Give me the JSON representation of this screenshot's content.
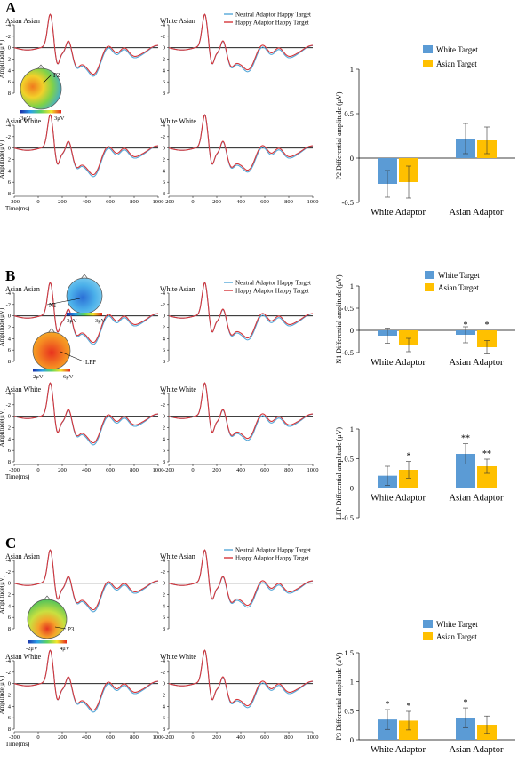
{
  "colors": {
    "neutral": "#56a8d8",
    "happy": "#d6363a",
    "white_target": "#5b9bd5",
    "asian_target": "#ffc000"
  },
  "erp_axes": {
    "xlabel": "Time(ms)",
    "ylabel": "Amplitude(μV)",
    "xticks": [
      "-200",
      "0",
      "200",
      "400",
      "600",
      "800",
      "1000"
    ],
    "yticks_full": [
      "-4",
      "-2",
      "0",
      "2",
      "4",
      "6",
      "8"
    ],
    "yticks_a_top": [
      "-4",
      "-2",
      "0",
      "2",
      "4",
      "6",
      "8"
    ]
  },
  "erp_legend": [
    "Neutral Adaptor Happy Target",
    "Happy Adaptor Happy Target"
  ],
  "bar_legend": [
    "White Target",
    "Asian Target"
  ],
  "bar_categories": [
    "White Adaptor",
    "Asian Adaptor"
  ],
  "panels": [
    {
      "label": "A",
      "erp_titles": [
        "Asian Asian",
        "White Asian",
        "Asian White",
        "White White"
      ],
      "topo": [
        {
          "component": "P2",
          "min": "-3μV",
          "max": "3μV"
        }
      ]
    },
    {
      "label": "B",
      "erp_titles": [
        "Asian Asian",
        "White Asian",
        "Asian White",
        "White White"
      ],
      "topo": [
        {
          "component": "N1",
          "min": "-3μV",
          "max": "3μV"
        },
        {
          "component": "LPP",
          "min": "-2μV",
          "max": "6μV"
        }
      ]
    },
    {
      "label": "C",
      "erp_titles": [
        "Asian Asian",
        "White Asian",
        "Asian White",
        "White White"
      ],
      "topo": [
        {
          "component": "P3",
          "min": "-2μV",
          "max": "4μV"
        }
      ]
    }
  ],
  "chart_data": [
    {
      "type": "bar",
      "id": "p2",
      "ylabel": "P2 Differential amplitude (μV)",
      "categories": [
        "White Adaptor",
        "Asian Adaptor"
      ],
      "ylim": [
        -0.5,
        1
      ],
      "yticks": [
        "1",
        "0.5",
        "0",
        "-0.5"
      ],
      "series": [
        {
          "name": "White Target",
          "values": [
            -0.29,
            0.22
          ],
          "errors": [
            0.15,
            0.17
          ]
        },
        {
          "name": "Asian Target",
          "values": [
            -0.27,
            0.2
          ],
          "errors": [
            0.18,
            0.15
          ]
        }
      ],
      "significance": [
        [
          "",
          ""
        ],
        [
          "",
          ""
        ]
      ]
    },
    {
      "type": "bar",
      "id": "n1",
      "ylabel": "N1 Differential amplitude (μV)",
      "categories": [
        "White Adaptor",
        "Asian Adaptor"
      ],
      "ylim": [
        -0.5,
        1
      ],
      "yticks": [
        "1",
        "0.5",
        "0",
        "-0.5"
      ],
      "series": [
        {
          "name": "White Target",
          "values": [
            -0.12,
            -0.1
          ],
          "errors": [
            0.17,
            0.18
          ]
        },
        {
          "name": "Asian Target",
          "values": [
            -0.33,
            -0.38
          ],
          "errors": [
            0.15,
            0.15
          ]
        }
      ],
      "significance": [
        [
          "",
          "*"
        ],
        [
          "",
          "*"
        ]
      ]
    },
    {
      "type": "bar",
      "id": "lpp",
      "ylabel": "LPP Differential amplitude (μV)",
      "categories": [
        "White Adaptor",
        "Asian Adaptor"
      ],
      "ylim": [
        -0.5,
        1
      ],
      "yticks": [
        "1",
        "0.5",
        "0",
        "-0.5"
      ],
      "series": [
        {
          "name": "White Target",
          "values": [
            0.21,
            0.58
          ],
          "errors": [
            0.16,
            0.17
          ]
        },
        {
          "name": "Asian Target",
          "values": [
            0.31,
            0.37
          ],
          "errors": [
            0.14,
            0.12
          ]
        }
      ],
      "significance": [
        [
          "",
          "**"
        ],
        [
          "*",
          "**"
        ]
      ]
    },
    {
      "type": "bar",
      "id": "p3",
      "ylabel": "P3 Differential amplitude (μV)",
      "categories": [
        "White Adaptor",
        "Asian Adaptor"
      ],
      "ylim": [
        0,
        1.5
      ],
      "yticks": [
        "1.5",
        "1",
        "0.5",
        "0"
      ],
      "series": [
        {
          "name": "White Target",
          "values": [
            0.35,
            0.38
          ],
          "errors": [
            0.17,
            0.17
          ]
        },
        {
          "name": "Asian Target",
          "values": [
            0.33,
            0.26
          ],
          "errors": [
            0.16,
            0.15
          ]
        }
      ],
      "significance": [
        [
          "*",
          "*"
        ],
        [
          "*",
          ""
        ]
      ]
    }
  ]
}
